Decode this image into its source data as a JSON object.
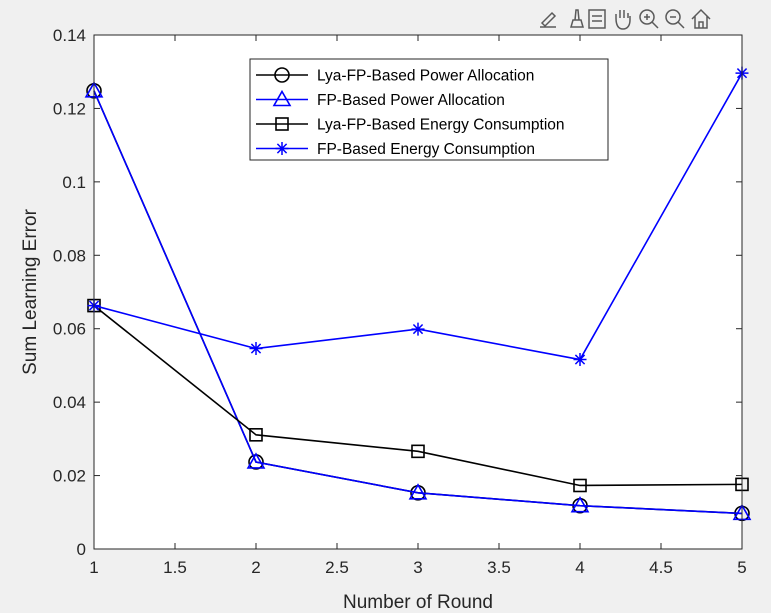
{
  "toolbar": {
    "icons": [
      "export-icon",
      "brush-icon",
      "datatip-icon",
      "pan-icon",
      "zoom-in-icon",
      "zoom-out-icon",
      "home-icon"
    ]
  },
  "chart_data": {
    "type": "line",
    "title": "",
    "xlabel": "Number of Round",
    "ylabel": "Sum Learning Error",
    "xlim": [
      1,
      5
    ],
    "ylim": [
      0,
      0.14
    ],
    "xticks": [
      1,
      1.5,
      2,
      2.5,
      3,
      3.5,
      4,
      4.5,
      5
    ],
    "xtick_labels": [
      "1",
      "1.5",
      "2",
      "2.5",
      "3",
      "3.5",
      "4",
      "4.5",
      "5"
    ],
    "yticks": [
      0,
      0.02,
      0.04,
      0.06,
      0.08,
      0.1,
      0.12,
      0.14
    ],
    "ytick_labels": [
      "0",
      "0.02",
      "0.04",
      "0.06",
      "0.08",
      "0.1",
      "0.12",
      "0.14"
    ],
    "grid": false,
    "legend_position": "top-right",
    "x": [
      1,
      2,
      3,
      4,
      5
    ],
    "series": [
      {
        "name": "Lya-FP-Based Power Allocation",
        "values": [
          0.1248,
          0.0237,
          0.0153,
          0.0118,
          0.0097
        ],
        "color": "#000000",
        "marker": "circle"
      },
      {
        "name": "FP-Based Power Allocation",
        "values": [
          0.1248,
          0.0237,
          0.0153,
          0.0118,
          0.0097
        ],
        "color": "#0000ff",
        "marker": "triangle"
      },
      {
        "name": "Lya-FP-Based Energy Consumption",
        "values": [
          0.0663,
          0.0311,
          0.0266,
          0.0173,
          0.0176
        ],
        "color": "#000000",
        "marker": "square"
      },
      {
        "name": "FP-Based Energy Consumption",
        "values": [
          0.0663,
          0.0546,
          0.0599,
          0.0516,
          0.1296
        ],
        "color": "#0000ff",
        "marker": "star"
      }
    ]
  }
}
